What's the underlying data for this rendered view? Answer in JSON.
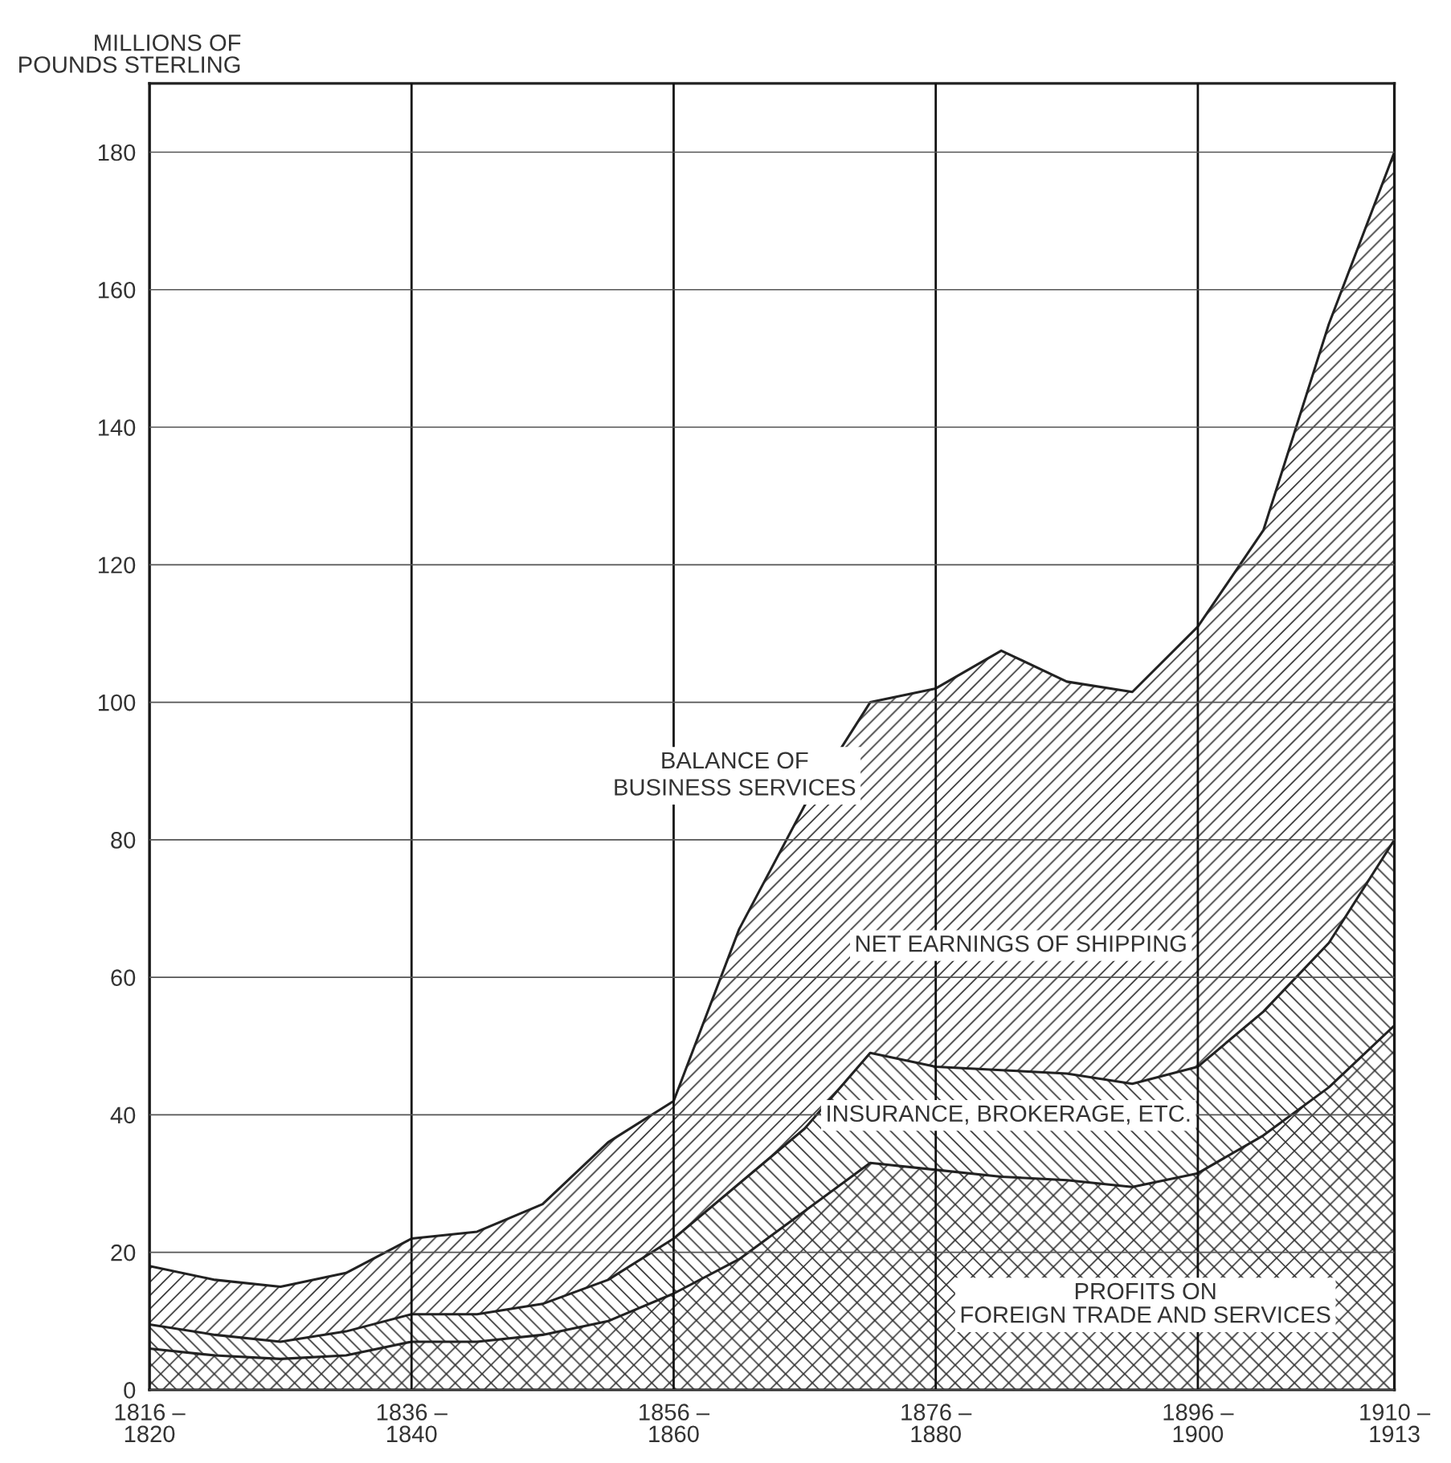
{
  "chart_data": {
    "type": "area",
    "stacked": true,
    "ylabel": "MILLIONS OF\nPOUNDS STERLING",
    "categories": [
      "1816 –\n1820",
      null,
      null,
      null,
      "1836 –\n1840",
      null,
      null,
      null,
      "1856 –\n1860",
      null,
      null,
      null,
      "1876 –\n1880",
      null,
      null,
      null,
      "1896 –\n1900",
      null,
      null,
      "1910 –\n1913"
    ],
    "series": [
      {
        "name": "PROFITS ON\nFOREIGN TRADE AND SERVICES",
        "color": "#333333",
        "values": [
          6,
          5,
          4.5,
          5,
          7,
          7,
          8,
          10,
          14,
          19,
          26,
          33,
          32,
          31,
          30.5,
          29.5,
          31.5,
          37,
          44,
          53
        ]
      },
      {
        "name": "INSURANCE, BROKERAGE, ETC.",
        "color": "#333333",
        "values": [
          3.5,
          3,
          2.5,
          3.5,
          4,
          4,
          4.5,
          6,
          8,
          11,
          12,
          16,
          15,
          15.5,
          15.5,
          15,
          15.5,
          18,
          21,
          27
        ]
      },
      {
        "name": "NET EARNINGS OF SHIPPING",
        "color": "#333333",
        "values": [
          8.5,
          8,
          8,
          8.5,
          11,
          12,
          14.5,
          20,
          20,
          37,
          47,
          51,
          55,
          61,
          57,
          57,
          64,
          70,
          90,
          100
        ]
      }
    ],
    "annotations": [
      "BALANCE OF\nBUSINESS SERVICES"
    ],
    "ylim": [
      0,
      190
    ],
    "yticks": [
      0,
      20,
      40,
      60,
      80,
      100,
      120,
      140,
      160,
      180
    ],
    "grid": true,
    "legend": false
  }
}
